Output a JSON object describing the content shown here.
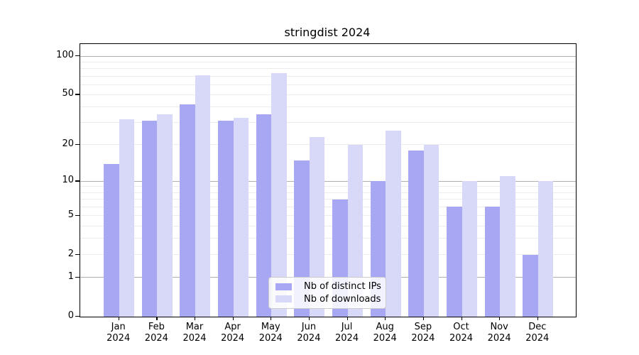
{
  "chart_data": {
    "type": "bar",
    "title": "stringdist 2024",
    "x_tick_months": [
      "Jan",
      "Feb",
      "Mar",
      "Apr",
      "May",
      "Jun",
      "Jul",
      "Aug",
      "Sep",
      "Oct",
      "Nov",
      "Dec"
    ],
    "x_tick_year": "2024",
    "series": [
      {
        "name": "Nb of distinct IPs",
        "color": "#a7a7f4",
        "values": [
          14,
          31,
          42,
          31,
          35,
          15,
          7,
          10,
          18,
          6,
          6,
          2
        ]
      },
      {
        "name": "Nb of downloads",
        "color": "#d8d8f8",
        "values": [
          32,
          35,
          71,
          33,
          74,
          23,
          20,
          26,
          20,
          10,
          11,
          10
        ]
      }
    ],
    "yscale": "log1p",
    "y_ticks": [
      100,
      50,
      20,
      10,
      5,
      2,
      1,
      0
    ],
    "ylim": [
      0,
      124
    ],
    "grid": {
      "major_lines": [
        1,
        10,
        100
      ],
      "minor_lines": [
        2,
        3,
        4,
        5,
        6,
        7,
        8,
        9,
        20,
        30,
        40,
        50,
        60,
        70,
        80,
        90
      ],
      "major_color": "#aeaeae",
      "minor_color": "#ececec"
    },
    "legend_position": "lower center"
  }
}
